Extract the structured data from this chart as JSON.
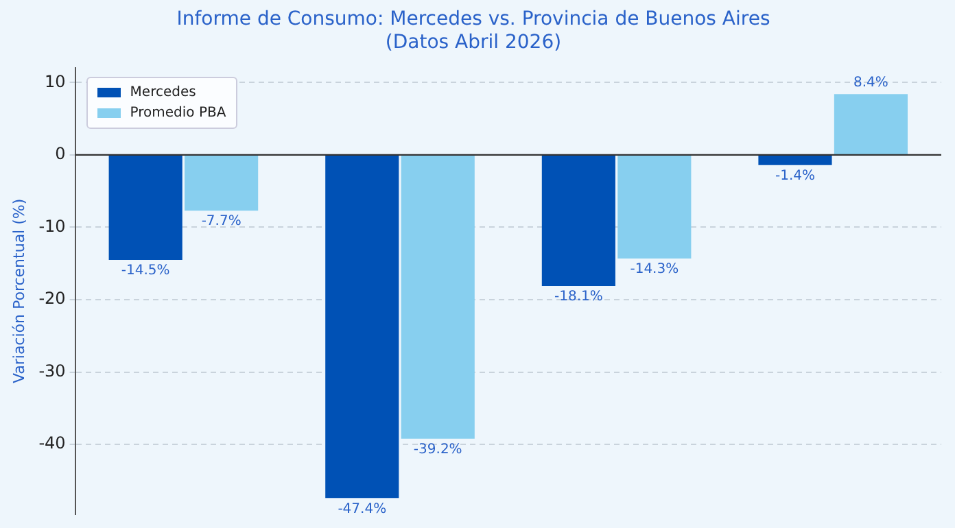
{
  "chart_data": {
    "type": "bar",
    "title": "Informe de Consumo: Mercedes vs. Provincia de Buenos Aires\n(Datos Abril 2026)",
    "ylabel": "Variación Porcentual (%)",
    "categories": [
      null,
      null,
      null,
      null
    ],
    "series": [
      {
        "name": "Mercedes",
        "color": "#0051b5",
        "values": [
          -14.5,
          -47.4,
          -18.1,
          -1.4
        ],
        "value_labels": [
          "-14.5%",
          "-47.4%",
          "-18.1%",
          "-1.4%"
        ]
      },
      {
        "name": "Promedio PBA",
        "color": "#87cfef",
        "values": [
          -7.7,
          -39.2,
          -14.3,
          8.4
        ],
        "value_labels": [
          "-7.7%",
          "-39.2%",
          "-14.3%",
          "8.4%"
        ]
      }
    ],
    "ylim": [
      -49.6,
      12
    ],
    "yticks": [
      10,
      0,
      -10,
      -20,
      -30,
      -40
    ],
    "grid": "y",
    "legend": "top left",
    "ref_lines": [
      {
        "axis": "y",
        "value": 0,
        "color": "#333333"
      }
    ]
  }
}
